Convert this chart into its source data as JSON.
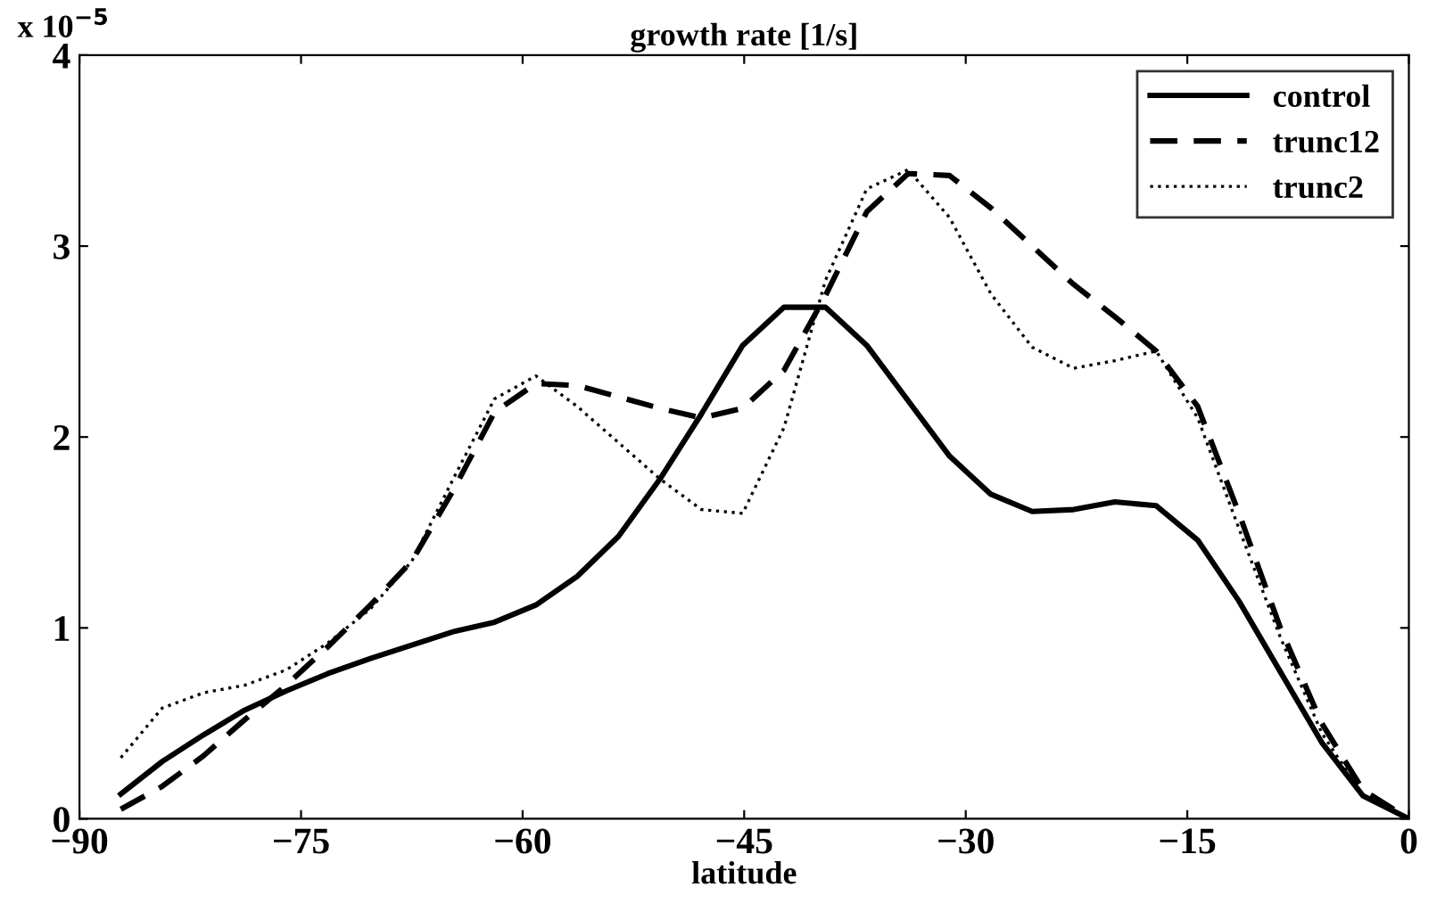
{
  "chart_data": {
    "type": "line",
    "title": "growth rate [1/s]",
    "xlabel": "latitude",
    "annotations": [
      "x 10$^{−5}$"
    ],
    "x": [
      -87.2,
      -84.4,
      -81.6,
      -78.8,
      -76.0,
      -73.2,
      -70.3,
      -67.5,
      -64.7,
      -61.9,
      -59.1,
      -56.3,
      -53.5,
      -50.7,
      -47.9,
      -45.1,
      -42.3,
      -39.5,
      -36.7,
      -33.9,
      -31.1,
      -28.3,
      -25.5,
      -22.7,
      -19.9,
      -17.1,
      -14.3,
      -11.5,
      -8.7,
      -5.9,
      -3.1,
      0
    ],
    "series": [
      {
        "name": "control",
        "color": "#000000",
        "line_style": "solid",
        "values": [
          0.13,
          0.3,
          0.44,
          0.57,
          0.67,
          0.76,
          0.84,
          0.91,
          0.98,
          1.03,
          1.12,
          1.27,
          1.48,
          1.78,
          2.12,
          2.48,
          2.68,
          2.68,
          2.48,
          2.19,
          1.9,
          1.7,
          1.61,
          1.62,
          1.66,
          1.64,
          1.46,
          1.14,
          0.77,
          0.4,
          0.12,
          0.0
        ]
      },
      {
        "name": "trunc12",
        "color": "#000000",
        "line_style": "dashed",
        "values": [
          0.05,
          0.17,
          0.33,
          0.52,
          0.7,
          0.9,
          1.12,
          1.35,
          1.72,
          2.13,
          2.28,
          2.27,
          2.21,
          2.15,
          2.1,
          2.15,
          2.35,
          2.74,
          3.18,
          3.38,
          3.37,
          3.2,
          3.0,
          2.8,
          2.63,
          2.45,
          2.16,
          1.6,
          1.0,
          0.5,
          0.15,
          0.0
        ]
      },
      {
        "name": "trunc2",
        "color": "#000000",
        "line_style": "dotted",
        "values": [
          0.32,
          0.58,
          0.66,
          0.7,
          0.78,
          0.92,
          1.1,
          1.35,
          1.78,
          2.2,
          2.32,
          2.16,
          1.97,
          1.78,
          1.62,
          1.6,
          2.05,
          2.82,
          3.3,
          3.4,
          3.15,
          2.75,
          2.47,
          2.36,
          2.4,
          2.45,
          2.1,
          1.52,
          0.95,
          0.45,
          0.12,
          0.0
        ]
      }
    ],
    "xlim": [
      -90,
      0
    ],
    "xticks": [
      {
        "value": -90,
        "label": "−90"
      },
      {
        "value": -75,
        "label": "−75"
      },
      {
        "value": -60,
        "label": "−60"
      },
      {
        "value": -45,
        "label": "−45"
      },
      {
        "value": -30,
        "label": "−30"
      },
      {
        "value": -15,
        "label": "−15"
      },
      0
    ],
    "ylim": [
      0,
      4
    ],
    "yticks": [
      0,
      1,
      2,
      3,
      4
    ],
    "grid": false,
    "legend": "top right",
    "marker": "none"
  }
}
